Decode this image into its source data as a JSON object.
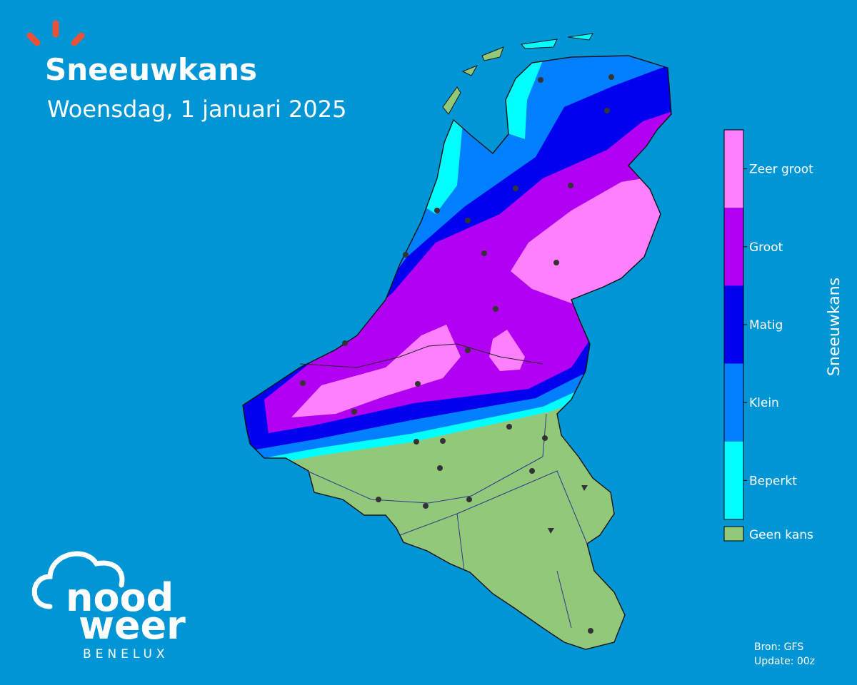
{
  "header": {
    "title": "Sneeuwkans",
    "subtitle": "Woensdag, 1 januari 2025"
  },
  "legend": {
    "title": "Sneeuwkans",
    "items": [
      {
        "label": "Zeer groot",
        "color": "#ff80ff"
      },
      {
        "label": "Groot",
        "color": "#b200f2"
      },
      {
        "label": "Matig",
        "color": "#0000ee"
      },
      {
        "label": "Klein",
        "color": "#0080ff"
      },
      {
        "label": "Beperkt",
        "color": "#00ffff"
      }
    ],
    "none": {
      "label": "Geen kans",
      "color": "#92c87a"
    }
  },
  "logo": {
    "line1": "nood",
    "line2": "weer",
    "tagline": "BENELUX"
  },
  "footer": {
    "source": "Bron: GFS",
    "update": "Update: 00z"
  }
}
